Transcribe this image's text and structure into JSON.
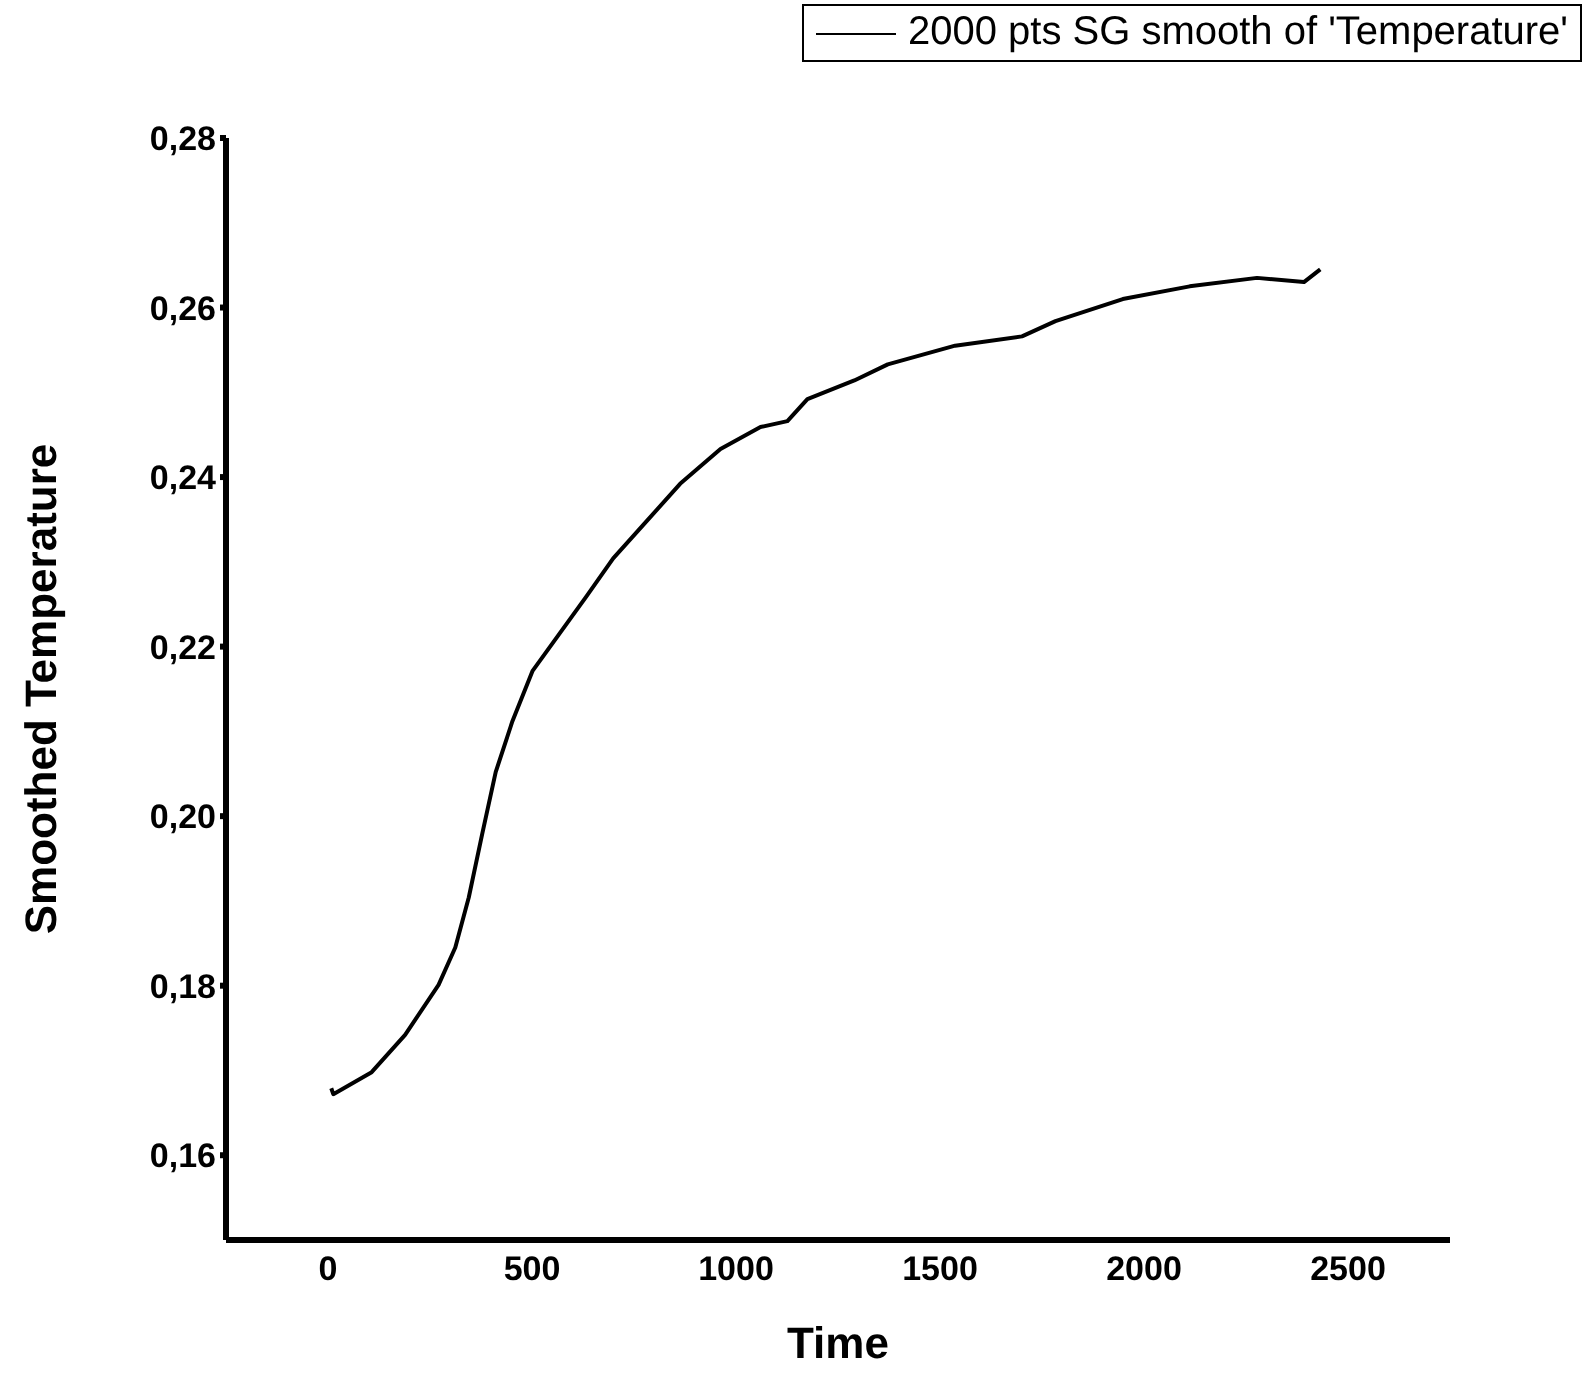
{
  "chart_data": {
    "type": "line",
    "xlabel": "Time",
    "ylabel": "Smoothed Temperature",
    "xlim": [
      -250,
      2750
    ],
    "xticks": [
      0,
      500,
      1000,
      1500,
      2000,
      2500
    ],
    "ylim": [
      0.15,
      0.28
    ],
    "yticks": [
      {
        "value": 0.16,
        "label": "0,16"
      },
      {
        "value": 0.18,
        "label": "0,18"
      },
      {
        "value": 0.2,
        "label": "0,20"
      },
      {
        "value": 0.22,
        "label": "0,22"
      },
      {
        "value": 0.24,
        "label": "0,24"
      },
      {
        "value": 0.26,
        "label": "0,26"
      },
      {
        "value": 0.28,
        "label": "0,28"
      }
    ],
    "grid": false,
    "legend": "top right",
    "marker": "none",
    "line_style": "solid",
    "series": [
      {
        "name": "2000 pts SG smooth of 'Temperature'",
        "color": "#000000",
        "x": [
          8,
          13,
          107,
          189,
          271,
          312,
          345,
          378,
          411,
          452,
          501,
          567,
          633,
          699,
          781,
          863,
          962,
          1060,
          1126,
          1175,
          1290,
          1372,
          1537,
          1701,
          1783,
          1948,
          2112,
          2277,
          2392,
          2432
        ],
        "values": [
          0.1679,
          0.1672,
          0.1698,
          0.1742,
          0.1801,
          0.1845,
          0.1904,
          0.1979,
          0.2052,
          0.2112,
          0.2171,
          0.2215,
          0.2259,
          0.2304,
          0.2348,
          0.2392,
          0.2433,
          0.2459,
          0.2466,
          0.2492,
          0.2514,
          0.2533,
          0.2555,
          0.2566,
          0.2584,
          0.261,
          0.2625,
          0.2635,
          0.263,
          0.2645
        ]
      }
    ]
  }
}
